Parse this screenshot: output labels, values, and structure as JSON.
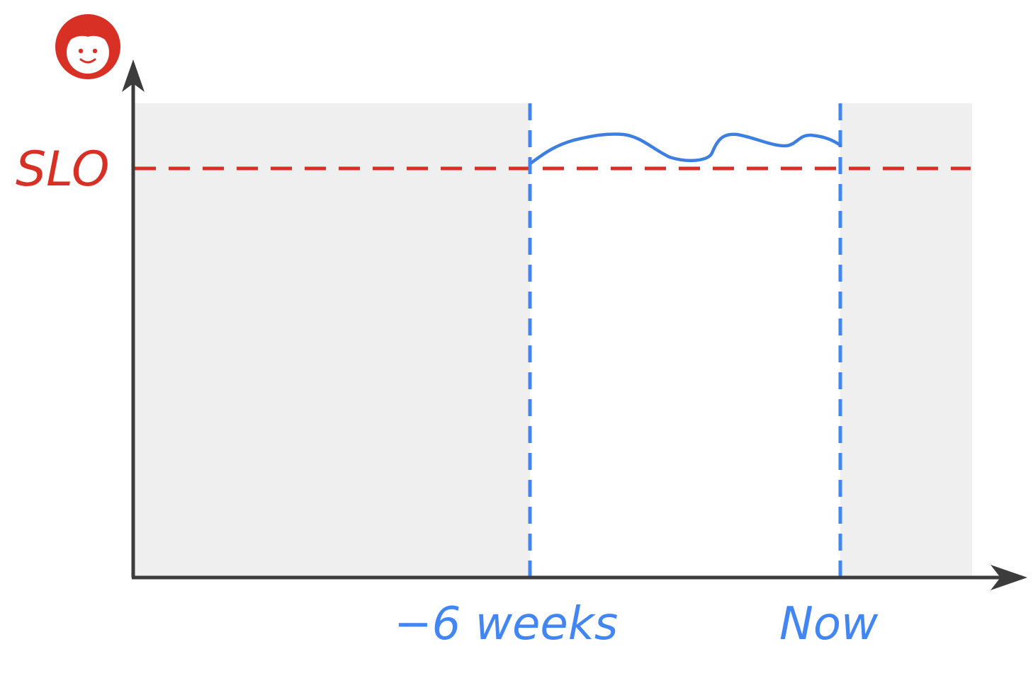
{
  "diagram": {
    "slo_label": "SLO",
    "window_start_label": "−6 weeks",
    "window_end_label": "Now",
    "user_icon": "user-face-icon"
  },
  "colors": {
    "slo": "#d93025",
    "window": "#4285f4",
    "measurement": "#3d7fe0",
    "axis": "#3c3c3c",
    "outside_window_fill": "#efefef"
  }
}
